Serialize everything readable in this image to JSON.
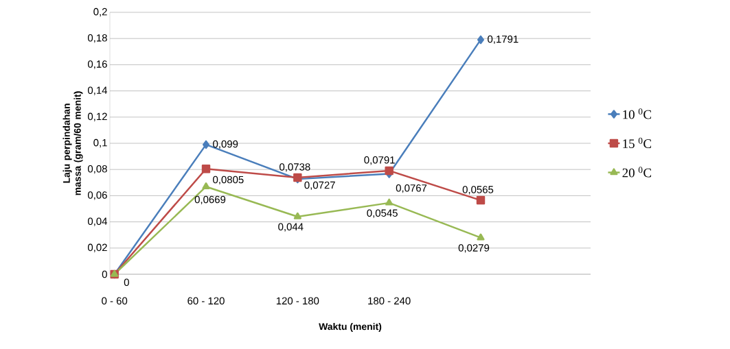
{
  "chart_data": {
    "type": "line",
    "xlabel": "Waktu (menit)",
    "ylabel": "Laju perpindahan massa (gram/60 menit)",
    "categories": [
      "0 - 60",
      "60 - 120",
      "120 - 180",
      "180 - 240",
      null
    ],
    "ylim": [
      0,
      0.2
    ],
    "yticks": [
      {
        "value": 0,
        "label": "0"
      },
      {
        "value": 0.02,
        "label": "0,02"
      },
      {
        "value": 0.04,
        "label": "0,04"
      },
      {
        "value": 0.06,
        "label": "0,06"
      },
      {
        "value": 0.08,
        "label": "0,08"
      },
      {
        "value": 0.1,
        "label": "0,1"
      },
      {
        "value": 0.12,
        "label": "0,12"
      },
      {
        "value": 0.14,
        "label": "0,14"
      },
      {
        "value": 0.16,
        "label": "0,16"
      },
      {
        "value": 0.18,
        "label": "0,18"
      },
      {
        "value": 0.2,
        "label": "0,2"
      }
    ],
    "grid": "y",
    "legend": "right",
    "line_style": "solid",
    "series": [
      {
        "name": "10 $^{0}$C",
        "color": "#4a7ebb",
        "marker": "diamond",
        "values": [
          0,
          0.099,
          0.0727,
          0.0767,
          0.1791
        ],
        "value_labels": [
          null,
          "0,099",
          "0,0727",
          "0,0767",
          "0,1791"
        ]
      },
      {
        "name": "15 $^{0}$C",
        "color": "#be4b48",
        "marker": "square",
        "values": [
          0,
          0.0805,
          0.0738,
          0.0791,
          0.0565
        ],
        "value_labels": [
          null,
          "0,0805",
          "0,0738",
          "0,0791",
          "0,0565"
        ]
      },
      {
        "name": "20 $^{0}$C",
        "color": "#98b954",
        "marker": "triangle",
        "values": [
          0,
          0.0669,
          0.044,
          0.0545,
          0.0279
        ],
        "value_labels": [
          "0",
          "0,0669",
          "0,044",
          "0,0545",
          "0,0279"
        ]
      }
    ]
  }
}
